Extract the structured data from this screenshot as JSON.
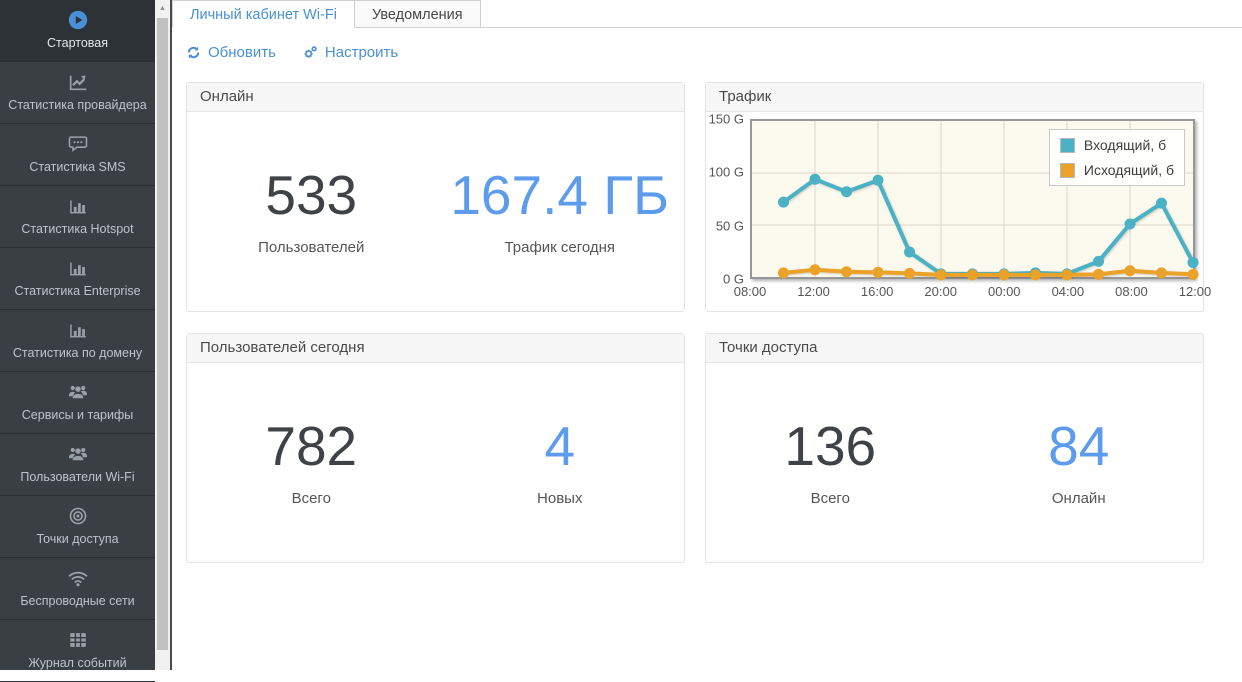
{
  "sidebar": {
    "items": [
      {
        "key": "home",
        "label": "Стартовая",
        "icon": "play-circle-icon",
        "active": true
      },
      {
        "key": "provider-stats",
        "label": "Статистика провайдера",
        "icon": "line-chart-icon",
        "active": false
      },
      {
        "key": "sms-stats",
        "label": "Статистика SMS",
        "icon": "comment-dots-icon",
        "active": false
      },
      {
        "key": "hotspot-stats",
        "label": "Статистика Hotspot",
        "icon": "bar-chart-icon",
        "active": false
      },
      {
        "key": "enterprise-stats",
        "label": "Статистика Enterprise",
        "icon": "bar-chart-icon",
        "active": false
      },
      {
        "key": "domain-stats",
        "label": "Статистика по домену",
        "icon": "bar-chart-icon",
        "active": false
      },
      {
        "key": "services-tariffs",
        "label": "Сервисы и тарифы",
        "icon": "users-icon",
        "active": false
      },
      {
        "key": "wifi-users",
        "label": "Пользователи Wi-Fi",
        "icon": "users-icon",
        "active": false
      },
      {
        "key": "access-points",
        "label": "Точки доступа",
        "icon": "access-point-icon",
        "active": false
      },
      {
        "key": "wireless-networks",
        "label": "Беспроводные сети",
        "icon": "wifi-icon",
        "active": false
      },
      {
        "key": "event-log",
        "label": "Журнал событий",
        "icon": "table-icon",
        "active": false
      }
    ]
  },
  "tabs": [
    {
      "key": "personal-cabinet-wifi",
      "label": "Личный кабинет Wi-Fi",
      "active": true
    },
    {
      "key": "notifications",
      "label": "Уведомления",
      "active": false
    }
  ],
  "toolbar": {
    "refresh_label": "Обновить",
    "configure_label": "Настроить"
  },
  "panels": {
    "online": {
      "title": "Онлайн",
      "stats": [
        {
          "value": "533",
          "label": "Пользователей"
        },
        {
          "value": "167.4 ГБ",
          "label": "Трафик сегодня"
        }
      ]
    },
    "traffic": {
      "title": "Трафик"
    },
    "users_today": {
      "title": "Пользователей сегодня",
      "stats": [
        {
          "value": "782",
          "label": "Всего"
        },
        {
          "value": "4",
          "label": "Новых"
        }
      ]
    },
    "access_points": {
      "title": "Точки доступа",
      "stats": [
        {
          "value": "136",
          "label": "Всего"
        },
        {
          "value": "84",
          "label": "Онлайн"
        }
      ]
    }
  },
  "colors": {
    "accent": "#4a90d2",
    "stat_blue": "#5d9cec",
    "incoming": "#4bb2c5",
    "outgoing": "#eaa228",
    "plot_background": "#fcf9ee"
  },
  "chart_data": {
    "type": "line",
    "title": "Трафик",
    "x_axis": {
      "tick_labels": [
        "08:00",
        "12:00",
        "16:00",
        "20:00",
        "00:00",
        "04:00",
        "08:00",
        "12:00"
      ],
      "tick_hours": [
        0,
        4,
        8,
        12,
        16,
        20,
        24,
        28
      ],
      "range_hours": 28
    },
    "y_axis": {
      "tick_labels": [
        "0 G",
        "50 G",
        "100 G",
        "150 G"
      ],
      "tick_values": [
        0,
        50,
        100,
        150
      ],
      "min": 0,
      "max": 150,
      "unit": "G"
    },
    "points_hours": [
      2,
      4,
      6,
      8,
      10,
      12,
      14,
      16,
      18,
      20,
      22,
      24,
      26,
      28
    ],
    "points_time_labels": [
      "10:00",
      "12:00",
      "14:00",
      "16:00",
      "18:00",
      "20:00",
      "22:00",
      "00:00",
      "02:00",
      "04:00",
      "06:00",
      "08:00",
      "10:00",
      "12:00"
    ],
    "series": [
      {
        "name": "Входящий, б",
        "color": "#4bb2c5",
        "values_gb": [
          72,
          94,
          82,
          93,
          24,
          3,
          3,
          3,
          4,
          3,
          15,
          51,
          71,
          14
        ]
      },
      {
        "name": "Исходящий, б",
        "color": "#eaa228",
        "values_gb": [
          4,
          7,
          5,
          4.5,
          3.5,
          2,
          2,
          2,
          2,
          2,
          2.5,
          6,
          4,
          2.5
        ]
      }
    ],
    "legend_position": "top-right",
    "grid": true
  }
}
